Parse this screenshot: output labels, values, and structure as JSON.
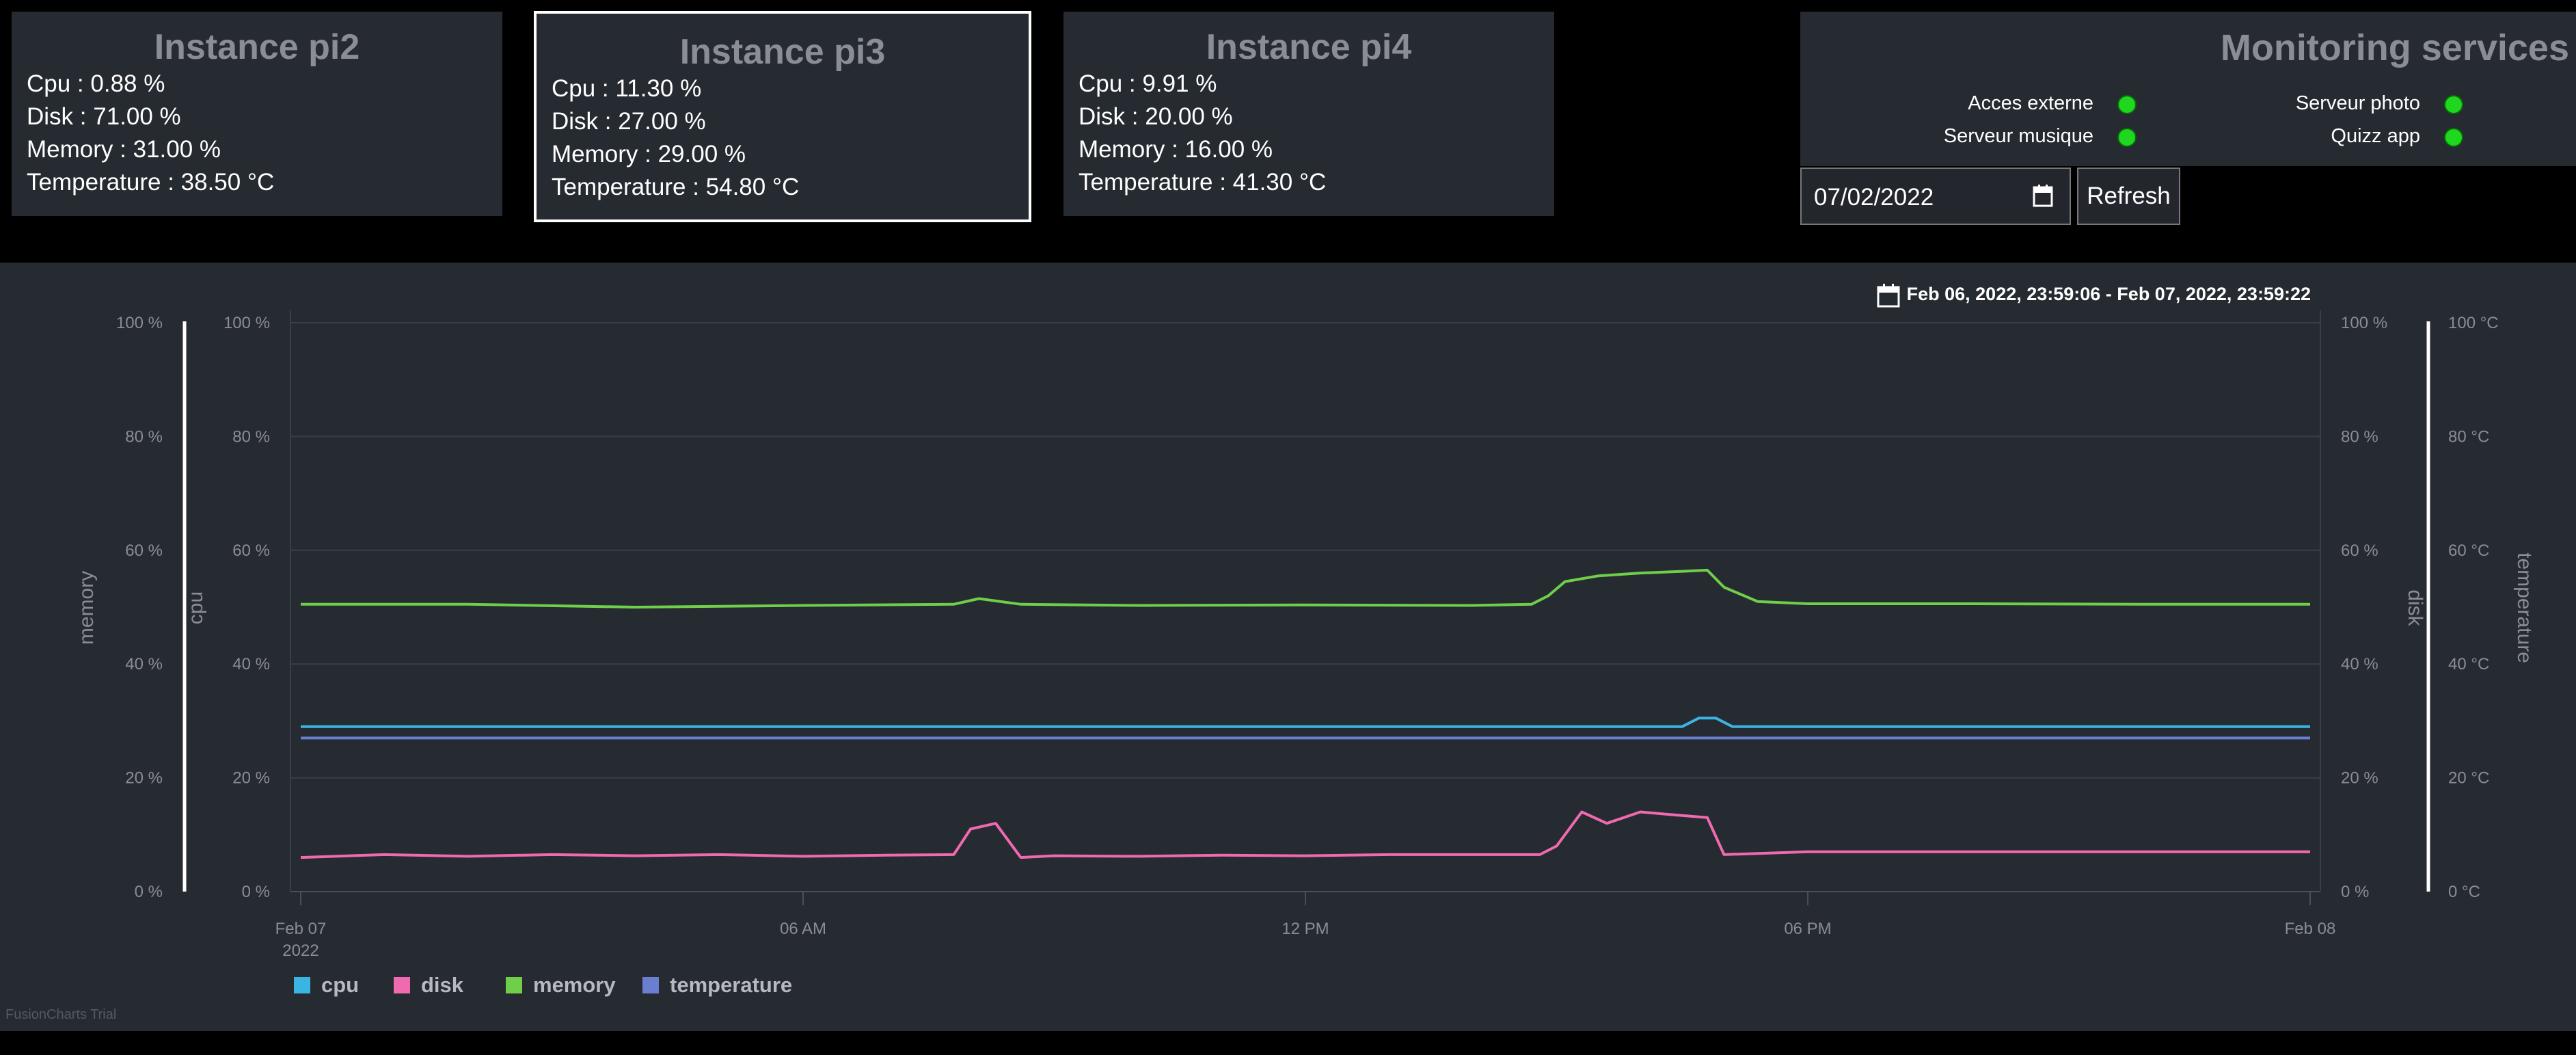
{
  "instances": [
    {
      "title": "Instance pi2",
      "cpu": "Cpu : 0.88 %",
      "disk": "Disk : 71.00 %",
      "memory": "Memory : 31.00 %",
      "temperature": "Temperature : 38.50 °C"
    },
    {
      "title": "Instance pi3",
      "cpu": "Cpu : 11.30 %",
      "disk": "Disk : 27.00 %",
      "memory": "Memory : 29.00 %",
      "temperature": "Temperature : 54.80 °C"
    },
    {
      "title": "Instance pi4",
      "cpu": "Cpu : 9.91 %",
      "disk": "Disk : 20.00 %",
      "memory": "Memory : 16.00 %",
      "temperature": "Temperature : 41.30 °C"
    }
  ],
  "monitoring": {
    "title": "Monitoring services",
    "services": [
      {
        "label": "Acces externe",
        "status": "up"
      },
      {
        "label": "Serveur photo",
        "status": "up"
      },
      {
        "label": "Serveur musique",
        "status": "up"
      },
      {
        "label": "Quizz app",
        "status": "up"
      }
    ],
    "status_color": "#1ed71e"
  },
  "controls": {
    "date_value": "07/02/2022",
    "refresh_label": "Refresh"
  },
  "chart": {
    "date_range": "Feb 06, 2022, 23:59:06 - Feb 07, 2022, 23:59:22",
    "watermark": "FusionCharts Trial"
  },
  "chart_data": {
    "type": "line",
    "x_ticks": [
      "Feb 07",
      "06 AM",
      "12 PM",
      "06 PM",
      "Feb 08"
    ],
    "x_tick_sub": "2022",
    "y_ticks_pct": [
      "0 %",
      "20 %",
      "40 %",
      "60 %",
      "80 %",
      "100 %"
    ],
    "y_ticks_temp": [
      "0 °C",
      "20 °C",
      "40 °C",
      "60 °C",
      "80 °C",
      "100 °C"
    ],
    "axes": {
      "left_outer": "memory",
      "left_inner": "cpu",
      "right_inner": "disk",
      "right_outer": "temperature"
    },
    "ylim": [
      0,
      100
    ],
    "xlim_hours": [
      0,
      24
    ],
    "grid": true,
    "legend_position": "bottom-left",
    "series": [
      {
        "name": "cpu",
        "color": "#3ab5e3",
        "points": [
          [
            0,
            29
          ],
          [
            16.5,
            29
          ],
          [
            16.7,
            30.5
          ],
          [
            16.9,
            30.5
          ],
          [
            17.1,
            29
          ],
          [
            24,
            29
          ]
        ]
      },
      {
        "name": "disk",
        "color": "#f06ab0",
        "points": [
          [
            0,
            6
          ],
          [
            1,
            6.5
          ],
          [
            2,
            6.2
          ],
          [
            3,
            6.5
          ],
          [
            4,
            6.3
          ],
          [
            5,
            6.5
          ],
          [
            6,
            6.2
          ],
          [
            7,
            6.4
          ],
          [
            7.8,
            6.5
          ],
          [
            8,
            11
          ],
          [
            8.3,
            12
          ],
          [
            8.6,
            6
          ],
          [
            9,
            6.3
          ],
          [
            10,
            6.2
          ],
          [
            11,
            6.4
          ],
          [
            12,
            6.3
          ],
          [
            13,
            6.5
          ],
          [
            14,
            6.5
          ],
          [
            14.8,
            6.5
          ],
          [
            15,
            8
          ],
          [
            15.3,
            14
          ],
          [
            15.6,
            12
          ],
          [
            16,
            14
          ],
          [
            16.4,
            13.5
          ],
          [
            16.8,
            13
          ],
          [
            17,
            6.5
          ],
          [
            18,
            7
          ],
          [
            19,
            7
          ],
          [
            20,
            7
          ],
          [
            21,
            7
          ],
          [
            22,
            7
          ],
          [
            23,
            7
          ],
          [
            24,
            7
          ]
        ]
      },
      {
        "name": "memory",
        "color": "#6fcf4a",
        "points": [
          [
            0,
            50.5
          ],
          [
            2,
            50.5
          ],
          [
            4,
            50
          ],
          [
            6,
            50.3
          ],
          [
            7.8,
            50.5
          ],
          [
            8.1,
            51.5
          ],
          [
            8.6,
            50.5
          ],
          [
            10,
            50.3
          ],
          [
            12,
            50.4
          ],
          [
            14,
            50.3
          ],
          [
            14.7,
            50.5
          ],
          [
            14.9,
            52
          ],
          [
            15.1,
            54.5
          ],
          [
            15.5,
            55.5
          ],
          [
            16,
            56
          ],
          [
            16.5,
            56.3
          ],
          [
            16.8,
            56.5
          ],
          [
            17,
            53.5
          ],
          [
            17.4,
            51
          ],
          [
            18,
            50.6
          ],
          [
            20,
            50.6
          ],
          [
            22,
            50.5
          ],
          [
            24,
            50.5
          ]
        ]
      },
      {
        "name": "temperature",
        "color": "#6b7fd0",
        "points": [
          [
            0,
            27
          ],
          [
            24,
            27
          ]
        ]
      }
    ]
  }
}
